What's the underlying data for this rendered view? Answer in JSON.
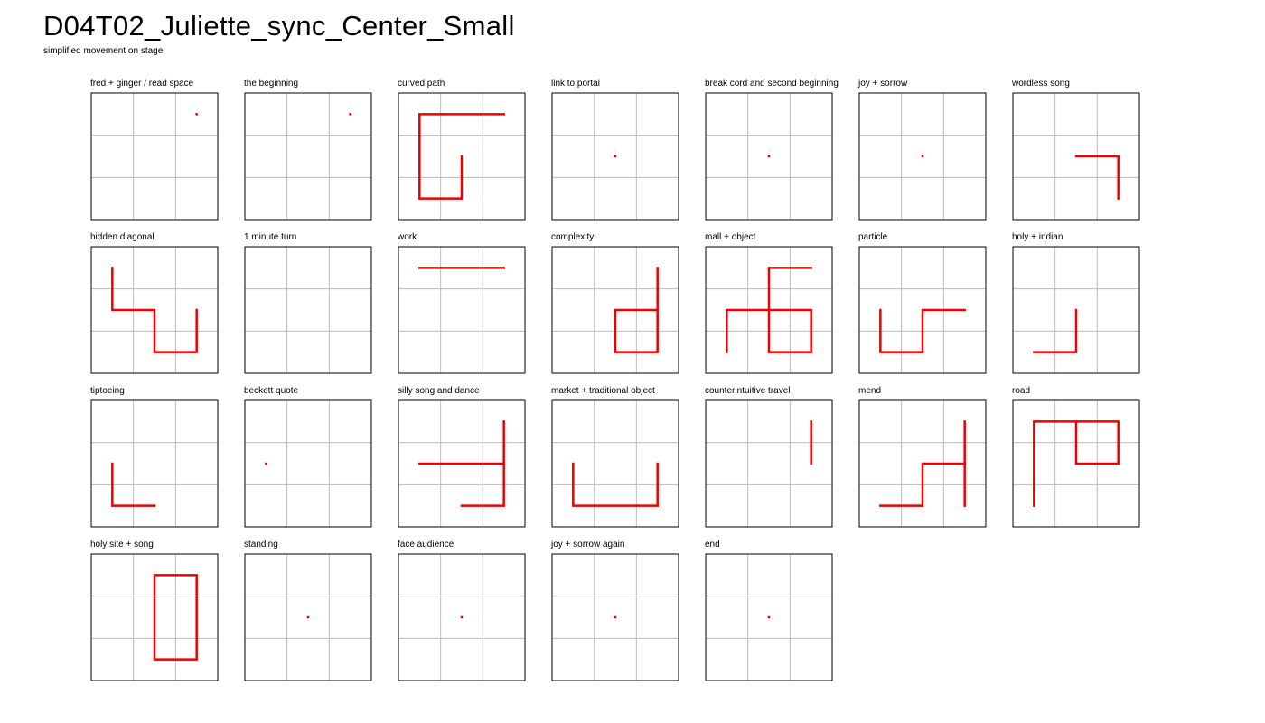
{
  "title": "D04T02_Juliette_sync_Center_Small",
  "subtitle": "simplified movement on stage",
  "colors": {
    "path": "#ee0000",
    "grid": "#bbbbbb",
    "frame": "#000000"
  },
  "panels": [
    {
      "label": "fred + ginger / read space",
      "dots": [
        [
          2.5,
          0.5
        ]
      ],
      "paths": []
    },
    {
      "label": "the beginning",
      "dots": [
        [
          2.5,
          0.5
        ]
      ],
      "paths": []
    },
    {
      "label": "curved path",
      "dots": [],
      "paths": [
        [
          [
            2.5,
            0.5
          ],
          [
            0.5,
            0.5
          ],
          [
            0.5,
            2.5
          ],
          [
            1.5,
            2.5
          ],
          [
            1.5,
            1.5
          ]
        ]
      ]
    },
    {
      "label": "link to portal",
      "dots": [
        [
          1.5,
          1.5
        ]
      ],
      "paths": []
    },
    {
      "label": "break cord and second beginning",
      "dots": [
        [
          1.5,
          1.5
        ]
      ],
      "paths": []
    },
    {
      "label": "joy + sorrow",
      "dots": [
        [
          1.5,
          1.5
        ]
      ],
      "paths": []
    },
    {
      "label": "wordless song",
      "dots": [],
      "paths": [
        [
          [
            1.5,
            1.5
          ],
          [
            2.5,
            1.5
          ],
          [
            2.5,
            2.5
          ]
        ]
      ]
    },
    {
      "label": "hidden diagonal",
      "dots": [],
      "paths": [
        [
          [
            0.5,
            0.5
          ],
          [
            0.5,
            1.5
          ],
          [
            1.5,
            1.5
          ],
          [
            1.5,
            2.5
          ],
          [
            2.5,
            2.5
          ],
          [
            2.5,
            1.5
          ]
        ]
      ]
    },
    {
      "label": "1 minute turn",
      "dots": [],
      "paths": []
    },
    {
      "label": "work",
      "dots": [],
      "paths": [
        [
          [
            0.5,
            0.5
          ],
          [
            2.5,
            0.5
          ]
        ]
      ]
    },
    {
      "label": "complexity",
      "dots": [],
      "paths": [
        [
          [
            2.5,
            0.5
          ],
          [
            2.5,
            2.5
          ],
          [
            1.5,
            2.5
          ],
          [
            1.5,
            1.5
          ],
          [
            2.5,
            1.5
          ]
        ]
      ]
    },
    {
      "label": "mall + object",
      "dots": [],
      "paths": [
        [
          [
            0.5,
            2.5
          ],
          [
            0.5,
            1.5
          ],
          [
            2.5,
            1.5
          ],
          [
            2.5,
            2.5
          ],
          [
            1.5,
            2.5
          ],
          [
            1.5,
            0.5
          ],
          [
            2.5,
            0.5
          ]
        ]
      ]
    },
    {
      "label": "particle",
      "dots": [],
      "paths": [
        [
          [
            0.5,
            1.5
          ],
          [
            0.5,
            2.5
          ],
          [
            1.5,
            2.5
          ],
          [
            1.5,
            1.5
          ],
          [
            2.5,
            1.5
          ]
        ]
      ]
    },
    {
      "label": "holy + indian",
      "dots": [],
      "paths": [
        [
          [
            0.5,
            2.5
          ],
          [
            1.5,
            2.5
          ],
          [
            1.5,
            1.5
          ]
        ]
      ]
    },
    {
      "label": "tiptoeing",
      "dots": [],
      "paths": [
        [
          [
            0.5,
            1.5
          ],
          [
            0.5,
            2.5
          ],
          [
            1.5,
            2.5
          ]
        ]
      ]
    },
    {
      "label": "beckett quote",
      "dots": [
        [
          0.5,
          1.5
        ]
      ],
      "paths": []
    },
    {
      "label": "silly song and dance",
      "dots": [],
      "paths": [
        [
          [
            0.5,
            1.5
          ],
          [
            2.5,
            1.5
          ]
        ],
        [
          [
            2.5,
            0.5
          ],
          [
            2.5,
            2.5
          ],
          [
            1.5,
            2.5
          ]
        ]
      ]
    },
    {
      "label": "market + traditional object",
      "dots": [],
      "paths": [
        [
          [
            0.5,
            1.5
          ],
          [
            0.5,
            2.5
          ],
          [
            2.5,
            2.5
          ],
          [
            2.5,
            1.5
          ]
        ]
      ]
    },
    {
      "label": "counterintuitive travel",
      "dots": [],
      "paths": [
        [
          [
            2.5,
            0.5
          ],
          [
            2.5,
            1.5
          ]
        ]
      ]
    },
    {
      "label": "mend",
      "dots": [],
      "paths": [
        [
          [
            0.5,
            2.5
          ],
          [
            1.5,
            2.5
          ],
          [
            1.5,
            1.5
          ],
          [
            2.5,
            1.5
          ]
        ],
        [
          [
            2.5,
            0.5
          ],
          [
            2.5,
            2.5
          ]
        ]
      ]
    },
    {
      "label": "road",
      "dots": [],
      "paths": [
        [
          [
            0.5,
            2.5
          ],
          [
            0.5,
            0.5
          ],
          [
            2.5,
            0.5
          ],
          [
            2.5,
            1.5
          ],
          [
            1.5,
            1.5
          ],
          [
            1.5,
            0.5
          ]
        ]
      ]
    },
    {
      "label": "holy site + song",
      "dots": [],
      "paths": [
        [
          [
            1.5,
            0.5
          ],
          [
            2.5,
            0.5
          ],
          [
            2.5,
            2.5
          ],
          [
            1.5,
            2.5
          ],
          [
            1.5,
            0.5
          ]
        ]
      ]
    },
    {
      "label": "standing",
      "dots": [
        [
          1.5,
          1.5
        ]
      ],
      "paths": []
    },
    {
      "label": "face audience",
      "dots": [
        [
          1.5,
          1.5
        ]
      ],
      "paths": []
    },
    {
      "label": "joy + sorrow again",
      "dots": [
        [
          1.5,
          1.5
        ]
      ],
      "paths": []
    },
    {
      "label": "end",
      "dots": [
        [
          1.5,
          1.5
        ]
      ],
      "paths": []
    }
  ]
}
